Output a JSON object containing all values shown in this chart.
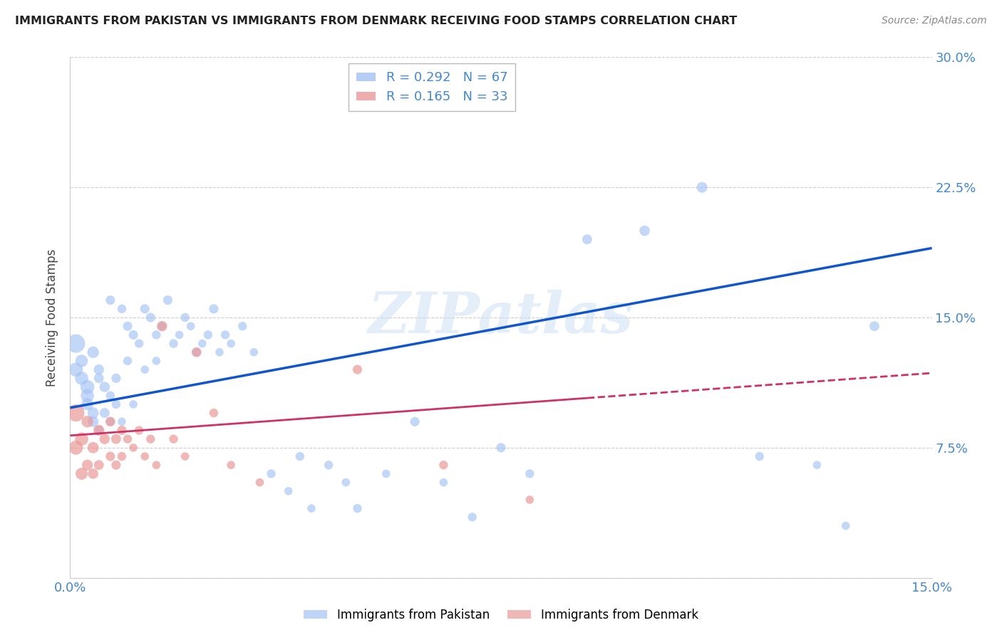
{
  "title": "IMMIGRANTS FROM PAKISTAN VS IMMIGRANTS FROM DENMARK RECEIVING FOOD STAMPS CORRELATION CHART",
  "source": "Source: ZipAtlas.com",
  "ylabel": "Receiving Food Stamps",
  "xlim": [
    0.0,
    0.15
  ],
  "ylim": [
    0.0,
    0.3
  ],
  "yticks": [
    0.0,
    0.075,
    0.15,
    0.225,
    0.3
  ],
  "xticks": [
    0.0,
    0.025,
    0.05,
    0.075,
    0.1,
    0.125,
    0.15
  ],
  "pakistan_R": 0.292,
  "pakistan_N": 67,
  "denmark_R": 0.165,
  "denmark_N": 33,
  "pakistan_color": "#a4c2f4",
  "denmark_color": "#ea9999",
  "pakistan_line_color": "#1155cc",
  "denmark_line_color": "#cc3366",
  "watermark_text": "ZIPatlas",
  "pakistan_x": [
    0.001,
    0.001,
    0.002,
    0.002,
    0.003,
    0.003,
    0.003,
    0.004,
    0.004,
    0.004,
    0.005,
    0.005,
    0.005,
    0.006,
    0.006,
    0.007,
    0.007,
    0.007,
    0.008,
    0.008,
    0.009,
    0.009,
    0.01,
    0.01,
    0.011,
    0.011,
    0.012,
    0.013,
    0.013,
    0.014,
    0.015,
    0.015,
    0.016,
    0.017,
    0.018,
    0.019,
    0.02,
    0.021,
    0.022,
    0.023,
    0.024,
    0.025,
    0.026,
    0.027,
    0.028,
    0.03,
    0.032,
    0.035,
    0.038,
    0.04,
    0.042,
    0.045,
    0.048,
    0.05,
    0.055,
    0.06,
    0.065,
    0.07,
    0.075,
    0.08,
    0.09,
    0.1,
    0.11,
    0.12,
    0.13,
    0.135,
    0.14
  ],
  "pakistan_y": [
    0.135,
    0.12,
    0.115,
    0.125,
    0.11,
    0.105,
    0.1,
    0.13,
    0.095,
    0.09,
    0.12,
    0.115,
    0.085,
    0.11,
    0.095,
    0.16,
    0.105,
    0.09,
    0.115,
    0.1,
    0.155,
    0.09,
    0.145,
    0.125,
    0.14,
    0.1,
    0.135,
    0.155,
    0.12,
    0.15,
    0.14,
    0.125,
    0.145,
    0.16,
    0.135,
    0.14,
    0.15,
    0.145,
    0.13,
    0.135,
    0.14,
    0.155,
    0.13,
    0.14,
    0.135,
    0.145,
    0.13,
    0.06,
    0.05,
    0.07,
    0.04,
    0.065,
    0.055,
    0.04,
    0.06,
    0.09,
    0.055,
    0.035,
    0.075,
    0.06,
    0.195,
    0.2,
    0.225,
    0.07,
    0.065,
    0.03,
    0.145
  ],
  "pakistan_size": [
    350,
    200,
    180,
    160,
    200,
    180,
    150,
    140,
    130,
    120,
    110,
    100,
    90,
    110,
    100,
    90,
    80,
    70,
    90,
    80,
    80,
    70,
    90,
    80,
    90,
    70,
    80,
    90,
    70,
    90,
    80,
    70,
    80,
    90,
    80,
    70,
    80,
    70,
    80,
    70,
    80,
    90,
    70,
    80,
    70,
    80,
    70,
    80,
    70,
    80,
    70,
    80,
    70,
    80,
    70,
    90,
    70,
    80,
    90,
    80,
    100,
    110,
    120,
    80,
    70,
    70,
    100
  ],
  "denmark_x": [
    0.001,
    0.001,
    0.002,
    0.002,
    0.003,
    0.003,
    0.004,
    0.004,
    0.005,
    0.005,
    0.006,
    0.007,
    0.007,
    0.008,
    0.008,
    0.009,
    0.009,
    0.01,
    0.011,
    0.012,
    0.013,
    0.014,
    0.015,
    0.016,
    0.018,
    0.02,
    0.022,
    0.025,
    0.028,
    0.033,
    0.05,
    0.065,
    0.08
  ],
  "denmark_y": [
    0.095,
    0.075,
    0.08,
    0.06,
    0.09,
    0.065,
    0.075,
    0.06,
    0.085,
    0.065,
    0.08,
    0.09,
    0.07,
    0.08,
    0.065,
    0.085,
    0.07,
    0.08,
    0.075,
    0.085,
    0.07,
    0.08,
    0.065,
    0.145,
    0.08,
    0.07,
    0.13,
    0.095,
    0.065,
    0.055,
    0.12,
    0.065,
    0.045
  ],
  "denmark_size": [
    300,
    200,
    180,
    150,
    140,
    120,
    130,
    110,
    120,
    100,
    110,
    100,
    90,
    100,
    90,
    90,
    80,
    80,
    70,
    80,
    70,
    80,
    70,
    110,
    80,
    70,
    100,
    80,
    70,
    70,
    90,
    80,
    70
  ],
  "pak_line_x0": 0.0,
  "pak_line_y0": 0.098,
  "pak_line_x1": 0.15,
  "pak_line_y1": 0.19,
  "den_line_x0": 0.0,
  "den_line_y0": 0.082,
  "den_line_x1": 0.15,
  "den_line_y1": 0.118,
  "den_line_solid_end_x": 0.09
}
